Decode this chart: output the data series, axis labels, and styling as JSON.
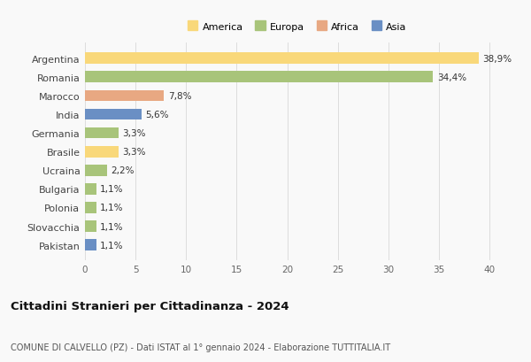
{
  "categories": [
    "Argentina",
    "Romania",
    "Marocco",
    "India",
    "Germania",
    "Brasile",
    "Ucraina",
    "Bulgaria",
    "Polonia",
    "Slovacchia",
    "Pakistan"
  ],
  "values": [
    38.9,
    34.4,
    7.8,
    5.6,
    3.3,
    3.3,
    2.2,
    1.1,
    1.1,
    1.1,
    1.1
  ],
  "labels": [
    "38,9%",
    "34,4%",
    "7,8%",
    "5,6%",
    "3,3%",
    "3,3%",
    "2,2%",
    "1,1%",
    "1,1%",
    "1,1%",
    "1,1%"
  ],
  "colors": [
    "#F9D87A",
    "#A8C47A",
    "#E8A882",
    "#6A8FC4",
    "#A8C47A",
    "#F9D87A",
    "#A8C47A",
    "#A8C47A",
    "#A8C47A",
    "#A8C47A",
    "#6A8FC4"
  ],
  "legend_labels": [
    "America",
    "Europa",
    "Africa",
    "Asia"
  ],
  "legend_colors": [
    "#F9D87A",
    "#A8C47A",
    "#E8A882",
    "#6A8FC4"
  ],
  "title": "Cittadini Stranieri per Cittadinanza - 2024",
  "subtitle": "COMUNE DI CALVELLO (PZ) - Dati ISTAT al 1° gennaio 2024 - Elaborazione TUTTITALIA.IT",
  "xlim": [
    0,
    42
  ],
  "xticks": [
    0,
    5,
    10,
    15,
    20,
    25,
    30,
    35,
    40
  ],
  "bg_color": "#f9f9f9",
  "grid_color": "#dddddd",
  "bar_height": 0.6
}
